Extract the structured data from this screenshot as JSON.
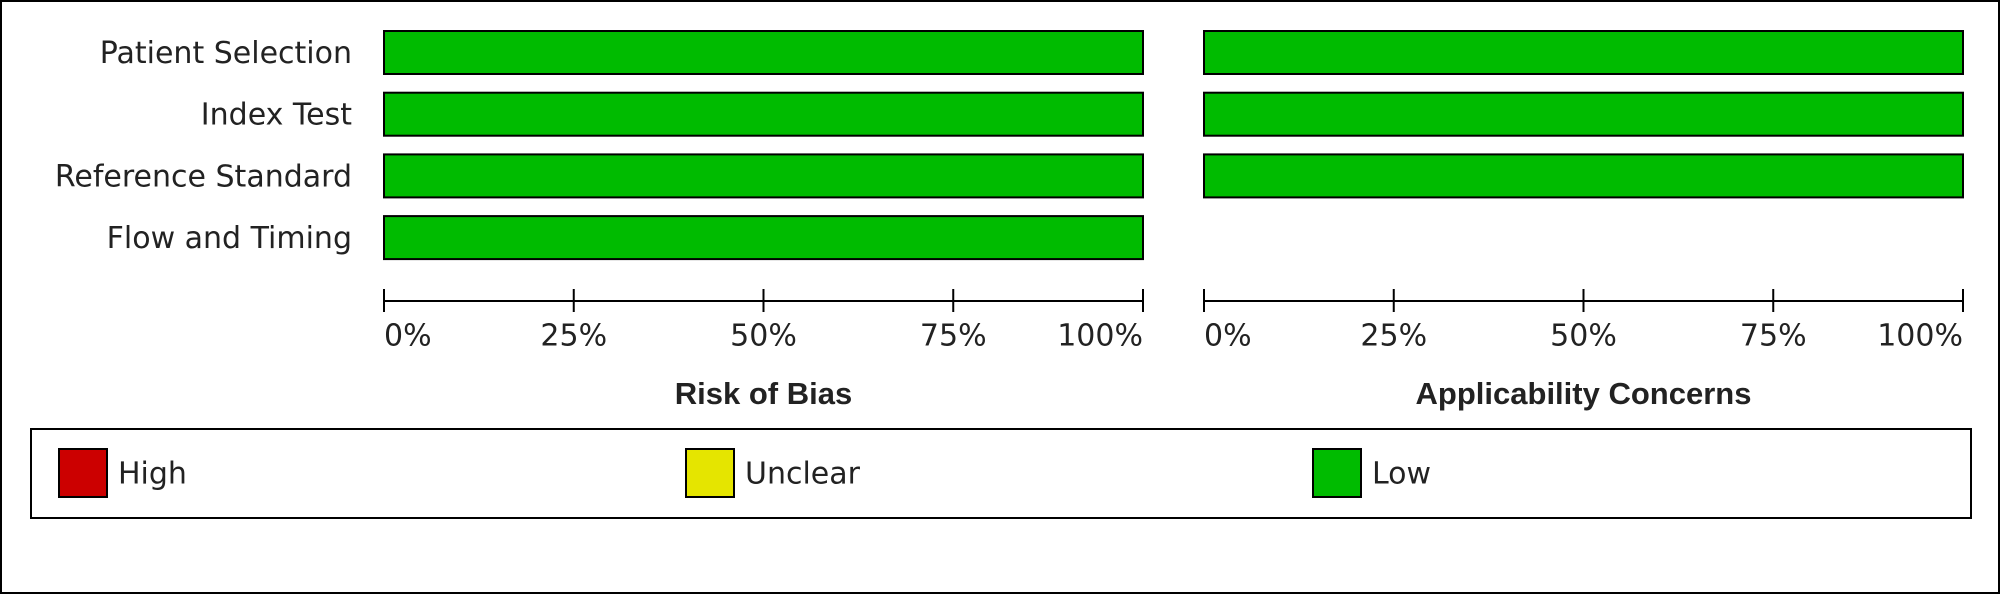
{
  "chart_data": [
    {
      "type": "bar",
      "orientation": "horizontal",
      "stacked": true,
      "title": "Risk of Bias",
      "categories": [
        "Patient Selection",
        "Index Test",
        "Reference Standard",
        "Flow and Timing"
      ],
      "series": [
        {
          "name": "High",
          "color": "#cc0000",
          "values": [
            0,
            0,
            0,
            0
          ]
        },
        {
          "name": "Unclear",
          "color": "#e5e500",
          "values": [
            0,
            0,
            0,
            0
          ]
        },
        {
          "name": "Low",
          "color": "#00bb00",
          "values": [
            100,
            100,
            100,
            100
          ]
        }
      ],
      "xlim": [
        0,
        100
      ],
      "xticks": [
        {
          "value": 0,
          "label": "0%"
        },
        {
          "value": 25,
          "label": "25%"
        },
        {
          "value": 50,
          "label": "50%"
        },
        {
          "value": 75,
          "label": "75%"
        },
        {
          "value": 100,
          "label": "100%"
        }
      ]
    },
    {
      "type": "bar",
      "orientation": "horizontal",
      "stacked": true,
      "title": "Applicability Concerns",
      "series": [
        {
          "values": [
            0,
            0,
            0
          ]
        },
        {
          "values": [
            0,
            0,
            0
          ]
        },
        {
          "values": [
            100,
            100,
            100
          ]
        }
      ],
      "xlim": [
        0,
        100
      ],
      "xticks": [
        {
          "value": 0,
          "label": "0%"
        },
        {
          "value": 25,
          "label": "25%"
        },
        {
          "value": 50,
          "label": "50%"
        },
        {
          "value": 75,
          "label": "75%"
        },
        {
          "value": 100,
          "label": "100%"
        }
      ]
    }
  ]
}
